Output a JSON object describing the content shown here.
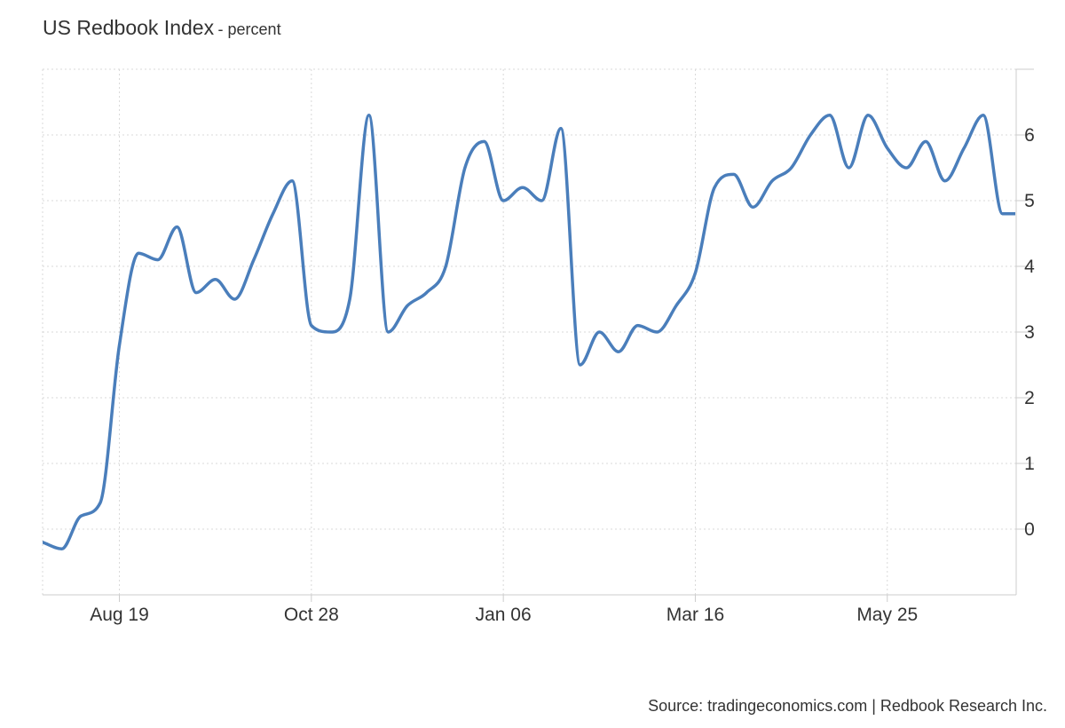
{
  "chart_data": {
    "type": "line",
    "title": "US Redbook Index",
    "subtitle": "- percent",
    "xlabel": "",
    "ylabel": "",
    "ylim": [
      -1,
      7
    ],
    "yticks": [
      0,
      1,
      2,
      3,
      4,
      5,
      6
    ],
    "xticks": [
      {
        "label": "Aug 19",
        "date": "2023-08-19"
      },
      {
        "label": "Oct 28",
        "date": "2023-10-28"
      },
      {
        "label": "Jan 06",
        "date": "2024-01-06"
      },
      {
        "label": "Mar 16",
        "date": "2024-03-16"
      },
      {
        "label": "May 25",
        "date": "2024-05-25"
      }
    ],
    "grid": true,
    "line_color": "#4a7ebb",
    "series": [
      {
        "x": [
          "2023-07-22",
          "2023-07-29",
          "2023-08-05",
          "2023-08-12",
          "2023-08-19",
          "2023-08-26",
          "2023-09-02",
          "2023-09-09",
          "2023-09-16",
          "2023-09-23",
          "2023-09-30",
          "2023-10-07",
          "2023-10-14",
          "2023-10-21",
          "2023-10-28",
          "2023-11-04",
          "2023-11-11",
          "2023-11-18",
          "2023-11-25",
          "2023-12-02",
          "2023-12-09",
          "2023-12-16",
          "2023-12-23",
          "2023-12-30",
          "2024-01-06",
          "2024-01-13",
          "2024-01-20",
          "2024-01-27",
          "2024-02-03",
          "2024-02-10",
          "2024-02-17",
          "2024-02-24",
          "2024-03-02",
          "2024-03-09",
          "2024-03-16",
          "2024-03-23",
          "2024-03-30",
          "2024-04-06",
          "2024-04-13",
          "2024-04-20",
          "2024-04-27",
          "2024-05-04",
          "2024-05-11",
          "2024-05-18",
          "2024-05-25",
          "2024-06-01",
          "2024-06-08",
          "2024-06-15",
          "2024-06-22",
          "2024-06-29",
          "2024-07-06",
          "2024-07-13"
        ],
        "values": [
          -0.2,
          -0.3,
          0.2,
          0.4,
          2.8,
          4.2,
          4.1,
          4.6,
          3.6,
          3.8,
          3.5,
          4.1,
          4.8,
          5.3,
          3.1,
          3.0,
          3.5,
          6.3,
          3.0,
          3.4,
          3.6,
          4.0,
          5.5,
          5.9,
          5.0,
          5.2,
          5.0,
          6.1,
          2.5,
          3.0,
          2.7,
          3.1,
          3.0,
          3.4,
          3.9,
          5.2,
          5.4,
          4.9,
          5.3,
          5.5,
          6.0,
          6.3,
          5.5,
          6.3,
          5.8,
          5.5,
          5.9,
          5.3,
          5.8,
          6.3,
          4.8,
          4.8
        ]
      }
    ]
  },
  "source": "Source: tradingeconomics.com | Redbook Research Inc."
}
